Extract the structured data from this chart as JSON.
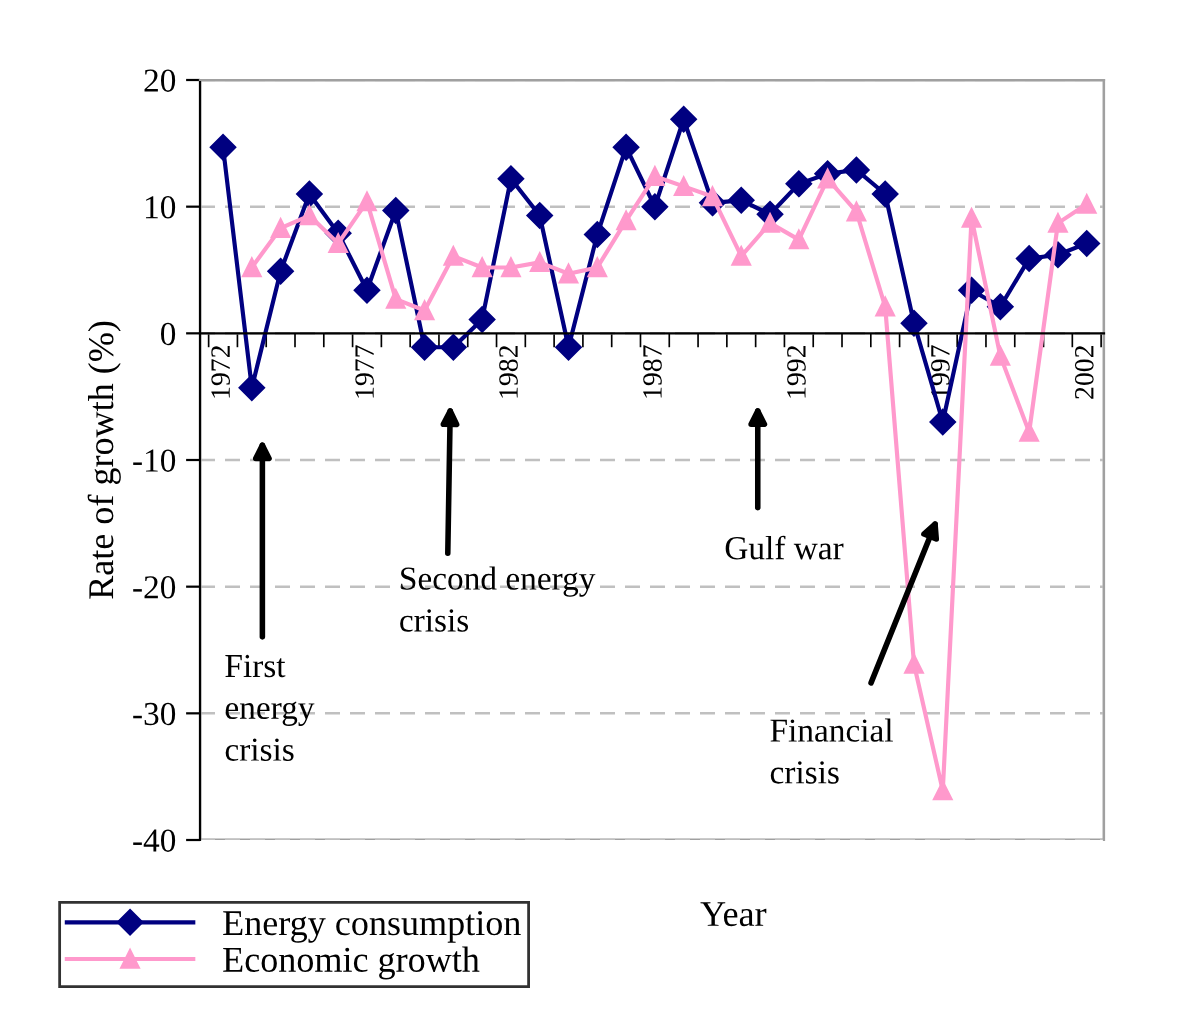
{
  "chart_data": {
    "type": "line",
    "xlabel": "Year",
    "ylabel": "Rate of growth (%)",
    "categories": [
      "1972",
      null,
      null,
      null,
      null,
      "1977",
      null,
      null,
      null,
      null,
      "1982",
      null,
      null,
      null,
      null,
      "1987",
      null,
      null,
      null,
      null,
      "1992",
      null,
      null,
      null,
      null,
      "1997",
      null,
      null,
      null,
      null,
      "2002"
    ],
    "series": [
      {
        "name": "Energy consumption",
        "color": "#000080",
        "marker": "diamond",
        "values": [
          14.7,
          -4.3,
          4.9,
          11.0,
          7.9,
          3.4,
          9.7,
          -1.1,
          -1.1,
          1.1,
          12.2,
          9.3,
          -1.1,
          7.8,
          14.7,
          10.0,
          16.9,
          10.3,
          10.5,
          9.4,
          11.8,
          12.6,
          12.9,
          11.0,
          0.8,
          -7.0,
          3.4,
          2.1,
          5.9,
          6.2,
          7.1
        ]
      },
      {
        "name": "Economic growth",
        "color": "#ff99cc",
        "marker": "triangle",
        "values": [
          null,
          5.2,
          8.3,
          9.3,
          7.1,
          10.4,
          2.7,
          1.8,
          6.1,
          5.2,
          5.2,
          5.6,
          4.7,
          5.2,
          8.9,
          12.4,
          11.6,
          10.8,
          6.1,
          8.7,
          7.4,
          12.2,
          9.6,
          2.1,
          -26.1,
          -36.1,
          9.1,
          -1.8,
          -7.8,
          8.7,
          10.2
        ]
      }
    ],
    "ylim": [
      -40,
      20
    ],
    "yticks": [
      -40,
      -30,
      -20,
      -10,
      0,
      10,
      20
    ],
    "grid": "y",
    "legend": "bottom left",
    "annotations": [
      "First\nenergy\ncrisis",
      "Second energy\ncrisis",
      "Gulf war",
      "Financial\ncrisis"
    ]
  }
}
